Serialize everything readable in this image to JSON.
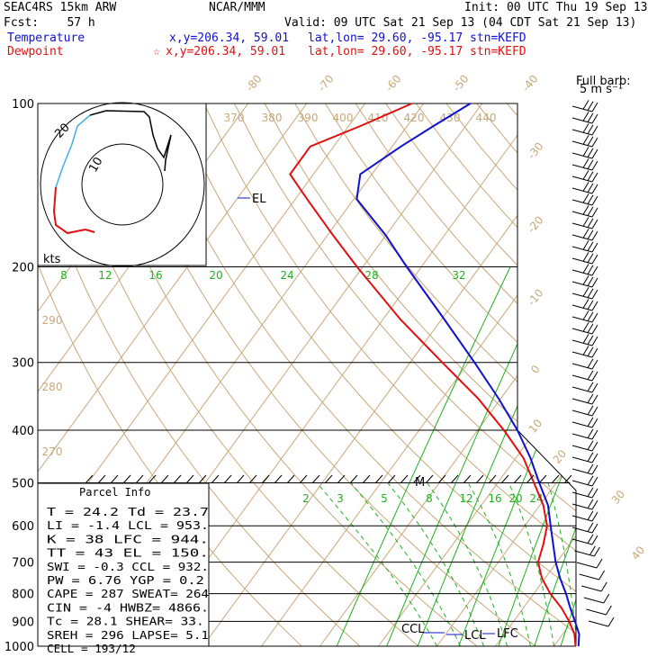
{
  "header": {
    "line1_left": "SEAC4RS 15km ARW",
    "line1_center": "NCAR/MMM",
    "line1_right": "Init: 00 UTC Thu 19 Sep 13",
    "line2_left": "Fcst:    57 h",
    "line2_right": "Valid: 09 UTC Sat 21 Sep 13 (04 CDT Sat 21 Sep 13)",
    "temp_label": "Temperature",
    "temp_xy": "x,y=206.34, 59.01",
    "temp_latlon": "lat,lon= 29.60, -95.17",
    "temp_stn": "stn=KEFD",
    "dew_label": "Dewpoint",
    "dew_marker": "☆",
    "dew_xy": "x,y=206.34, 59.01",
    "dew_latlon": "lat,lon= 29.60, -95.17",
    "dew_stn": "stn=KEFD"
  },
  "wind_legend": {
    "line1": "Full barb:",
    "line2": "5 m s⁻¹"
  },
  "colors": {
    "temperature": "#1010d0",
    "dewpoint": "#e01010",
    "dry_adiabat": "#c8a878",
    "mixing_ratio": "#20b020",
    "isobar": "#000000"
  },
  "chart_data": {
    "type": "line",
    "pressure_levels": [
      100,
      200,
      300,
      400,
      500,
      600,
      700,
      800,
      900,
      1000
    ],
    "temp_axis_labels": [
      "-80",
      "-70",
      "-60",
      "-50",
      "-40",
      "-30",
      "-20",
      "-10",
      "0",
      "10",
      "20",
      "30",
      "40"
    ],
    "theta_labels_top": [
      "370",
      "380",
      "390",
      "400",
      "410",
      "420",
      "430",
      "440"
    ],
    "theta_labels_left": [
      "290",
      "280",
      "270"
    ],
    "mixing_ratio_top": [
      "8",
      "12",
      "16",
      "20",
      "24",
      "28",
      "32"
    ],
    "mixing_ratio_mid": [
      "2",
      "3",
      "5",
      "8",
      "12",
      "16",
      "20",
      "24"
    ],
    "series": [
      {
        "name": "Temperature",
        "color": "#1010d0",
        "p": [
          1000,
          950,
          900,
          850,
          800,
          750,
          700,
          650,
          600,
          550,
          500,
          450,
          400,
          350,
          300,
          250,
          200,
          175,
          150,
          135,
          120,
          110,
          100
        ],
        "t": [
          24.2,
          22.8,
          20.5,
          18.0,
          15.5,
          12.6,
          9.8,
          7.2,
          4.4,
          1.4,
          -2.9,
          -7.5,
          -13.2,
          -20.3,
          -29.0,
          -39.5,
          -52.5,
          -60.0,
          -69.5,
          -72.0,
          -68.5,
          -65.5,
          -62.0
        ]
      },
      {
        "name": "Dewpoint",
        "color": "#e01010",
        "p": [
          1000,
          950,
          900,
          850,
          800,
          750,
          700,
          650,
          600,
          550,
          500,
          450,
          400,
          350,
          300,
          250,
          200,
          175,
          150,
          135,
          120,
          110,
          100
        ],
        "t": [
          23.7,
          22.0,
          19.5,
          16.5,
          12.8,
          9.5,
          6.8,
          5.5,
          3.8,
          0.6,
          -3.8,
          -8.7,
          -15.5,
          -23.8,
          -34.5,
          -47.0,
          -61.0,
          -69.0,
          -78.0,
          -84.0,
          -84.0,
          -78.0,
          -72.0
        ]
      }
    ],
    "annotations": [
      {
        "text": "EL",
        "p": 150
      },
      {
        "text": "CCL",
        "p": 932
      },
      {
        "text": "LCL",
        "p": 953
      },
      {
        "text": "LFC",
        "p": 944
      },
      {
        "text": "M",
        "p": 505
      }
    ],
    "hodograph": {
      "ring_labels": [
        "10",
        "20"
      ],
      "unit": "kts"
    }
  },
  "parcel_info": {
    "title": "Parcel Info",
    "rows": [
      "T  =    24.2 Td =   23.7",
      "LI =    -1.4 LCL =  953.",
      "K  =      38 LFC =  944.",
      "TT =      43 EL  =  150.",
      "SWI =   -0.3 CCL =  932.",
      "PW =   6.76 YGP =   0.2",
      "CAPE =   287 SWEAT=  264",
      "CIN =     -4 HWBZ= 4866.",
      "Tc =   28.1 SHEAR=  33.",
      "SREH =   296 LAPSE=  5.1",
      "CELL = 193/12"
    ]
  }
}
